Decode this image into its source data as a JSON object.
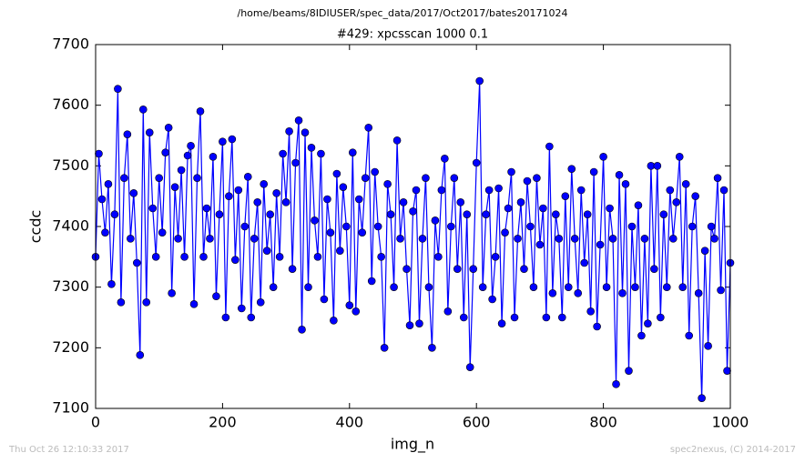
{
  "chart_data": {
    "type": "line",
    "title": "#429: xpcsscan 1000 0.1",
    "subtitle": "/home/beams/8IDIUSER/spec_data/2017/Oct2017/bates20171024",
    "xlabel": "img_n",
    "ylabel": "ccdc",
    "annotations": [
      "Thu Oct 26 12:10:33 2017",
      "spec2nexus, (C) 2014-2017"
    ],
    "xlim": [
      0,
      1000
    ],
    "xticks": [
      0,
      200,
      400,
      600,
      800,
      1000
    ],
    "ylim": [
      7100,
      7700
    ],
    "yticks": [
      7100,
      7200,
      7300,
      7400,
      7500,
      7600,
      7700
    ],
    "grid": false,
    "x": [
      0,
      5,
      10,
      15,
      20,
      25,
      30,
      35,
      40,
      45,
      50,
      55,
      60,
      65,
      70,
      75,
      80,
      85,
      90,
      95,
      100,
      105,
      110,
      115,
      120,
      125,
      130,
      135,
      140,
      145,
      150,
      155,
      160,
      165,
      170,
      175,
      180,
      185,
      190,
      195,
      200,
      205,
      210,
      215,
      220,
      225,
      230,
      235,
      240,
      245,
      250,
      255,
      260,
      265,
      270,
      275,
      280,
      285,
      290,
      295,
      300,
      305,
      310,
      315,
      320,
      325,
      330,
      335,
      340,
      345,
      350,
      355,
      360,
      365,
      370,
      375,
      380,
      385,
      390,
      395,
      400,
      405,
      410,
      415,
      420,
      425,
      430,
      435,
      440,
      445,
      450,
      455,
      460,
      465,
      470,
      475,
      480,
      485,
      490,
      495,
      500,
      505,
      510,
      515,
      520,
      525,
      530,
      535,
      540,
      545,
      550,
      555,
      560,
      565,
      570,
      575,
      580,
      585,
      590,
      595,
      600,
      605,
      610,
      615,
      620,
      625,
      630,
      635,
      640,
      645,
      650,
      655,
      660,
      665,
      670,
      675,
      680,
      685,
      690,
      695,
      700,
      705,
      710,
      715,
      720,
      725,
      730,
      735,
      740,
      745,
      750,
      755,
      760,
      765,
      770,
      775,
      780,
      785,
      790,
      795,
      800,
      805,
      810,
      815,
      820,
      825,
      830,
      835,
      840,
      845,
      850,
      855,
      860,
      865,
      870,
      875,
      880,
      885,
      890,
      895,
      900,
      905,
      910,
      915,
      920,
      925,
      930,
      935,
      940,
      945,
      950,
      955,
      960,
      965,
      970,
      975,
      980,
      985,
      990,
      995,
      1000
    ],
    "series": [
      {
        "name": "ccdc",
        "color": "#0000ff",
        "values": [
          7350,
          7520,
          7445,
          7390,
          7470,
          7305,
          7420,
          7627,
          7275,
          7480,
          7552,
          7380,
          7455,
          7340,
          7188,
          7593,
          7275,
          7555,
          7430,
          7350,
          7480,
          7390,
          7522,
          7563,
          7290,
          7465,
          7380,
          7493,
          7350,
          7517,
          7533,
          7272,
          7480,
          7590,
          7350,
          7430,
          7380,
          7515,
          7285,
          7420,
          7540,
          7250,
          7450,
          7544,
          7345,
          7460,
          7265,
          7400,
          7482,
          7250,
          7380,
          7440,
          7275,
          7470,
          7360,
          7420,
          7300,
          7455,
          7350,
          7520,
          7440,
          7557,
          7330,
          7505,
          7575,
          7230,
          7555,
          7300,
          7530,
          7410,
          7350,
          7520,
          7280,
          7445,
          7390,
          7245,
          7487,
          7360,
          7465,
          7400,
          7270,
          7522,
          7260,
          7445,
          7390,
          7480,
          7563,
          7310,
          7490,
          7400,
          7350,
          7200,
          7470,
          7420,
          7300,
          7542,
          7380,
          7440,
          7330,
          7237,
          7425,
          7460,
          7240,
          7380,
          7480,
          7300,
          7200,
          7410,
          7350,
          7460,
          7512,
          7260,
          7400,
          7480,
          7330,
          7440,
          7250,
          7420,
          7168,
          7330,
          7505,
          7640,
          7300,
          7420,
          7460,
          7280,
          7350,
          7463,
          7240,
          7390,
          7430,
          7490,
          7250,
          7380,
          7440,
          7330,
          7475,
          7400,
          7300,
          7480,
          7370,
          7430,
          7250,
          7532,
          7290,
          7420,
          7380,
          7250,
          7450,
          7300,
          7495,
          7380,
          7290,
          7460,
          7340,
          7420,
          7260,
          7490,
          7235,
          7370,
          7515,
          7300,
          7430,
          7380,
          7140,
          7485,
          7290,
          7470,
          7162,
          7400,
          7300,
          7435,
          7220,
          7380,
          7240,
          7500,
          7330,
          7500,
          7250,
          7420,
          7300,
          7460,
          7380,
          7440,
          7515,
          7300,
          7470,
          7220,
          7400,
          7450,
          7290,
          7117,
          7360,
          7203,
          7400,
          7380,
          7480,
          7295,
          7460,
          7162,
          7340
        ]
      }
    ]
  }
}
